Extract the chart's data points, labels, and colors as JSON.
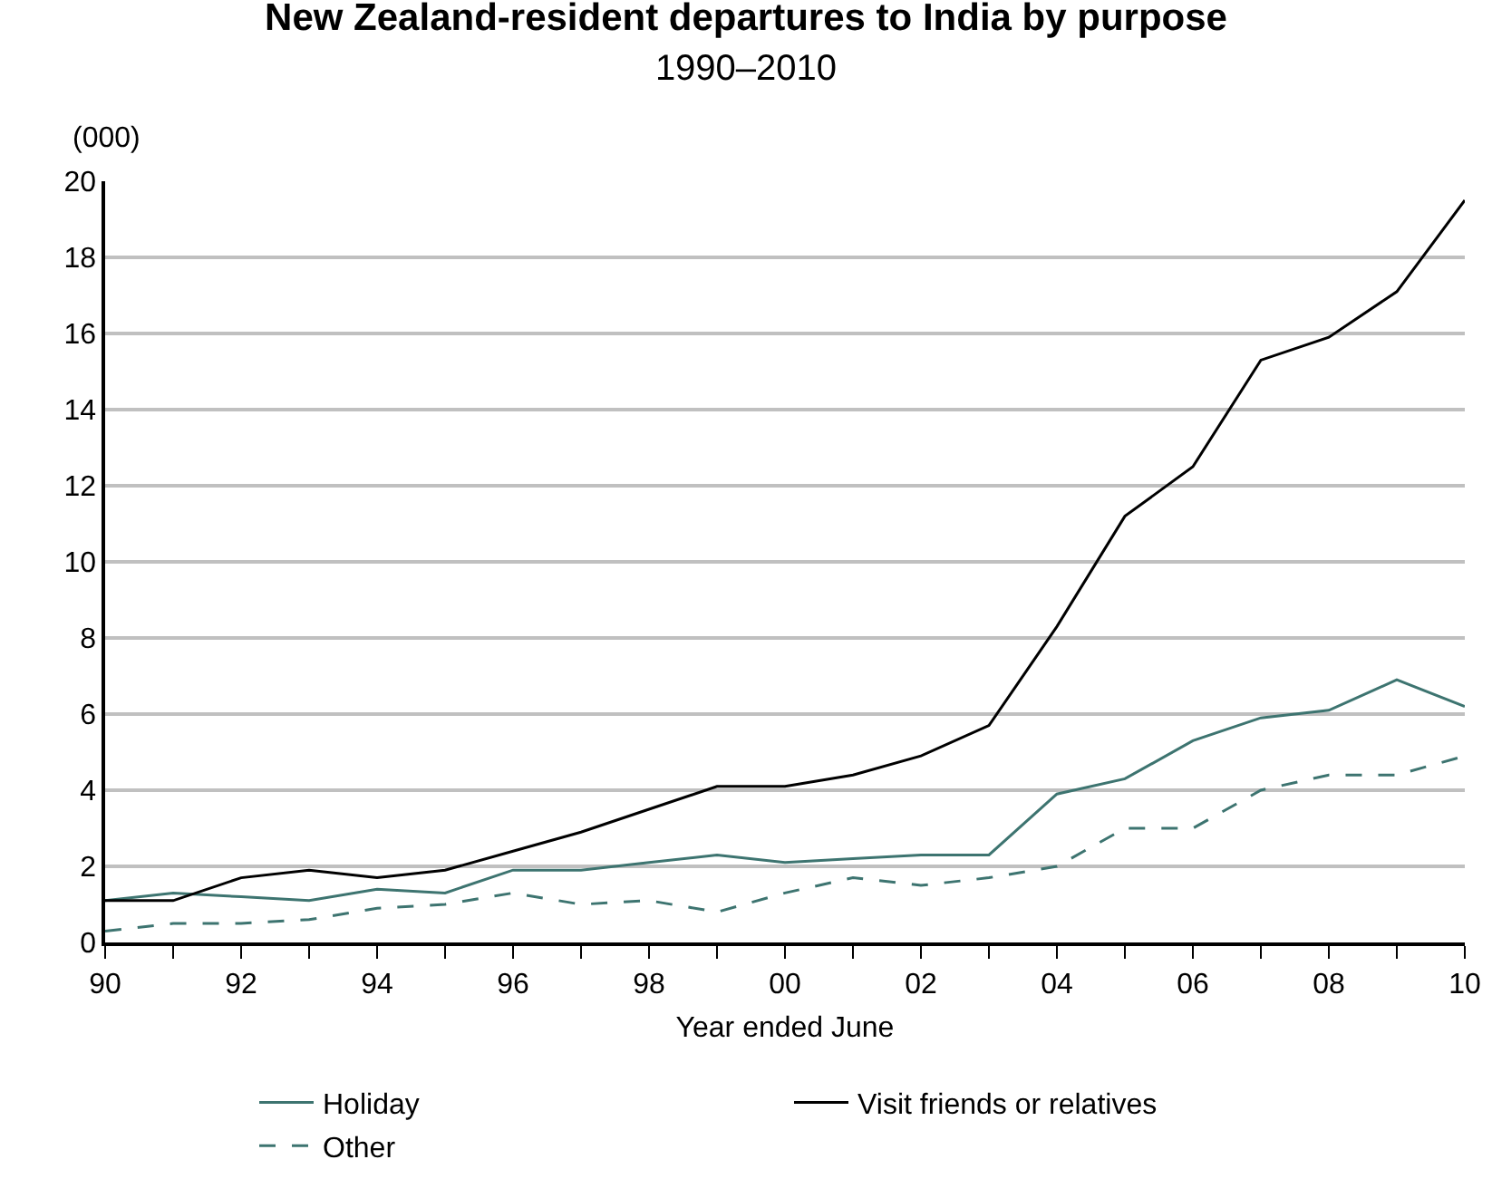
{
  "chart_data": {
    "type": "line",
    "title": "New Zealand-resident departures to India by purpose",
    "subtitle": "1990–2010",
    "xlabel": "Year ended June",
    "ylabel": "(000)",
    "x": [
      1990,
      1991,
      1992,
      1993,
      1994,
      1995,
      1996,
      1997,
      1998,
      1999,
      2000,
      2001,
      2002,
      2003,
      2004,
      2005,
      2006,
      2007,
      2008,
      2009,
      2010
    ],
    "series": [
      {
        "name": "Holiday",
        "color": "#3d7470",
        "line_style": "solid",
        "values": [
          1.1,
          1.3,
          1.2,
          1.1,
          1.4,
          1.3,
          1.9,
          1.9,
          2.1,
          2.3,
          2.1,
          2.2,
          2.3,
          2.3,
          3.9,
          4.3,
          5.3,
          5.9,
          6.1,
          6.9,
          6.2
        ]
      },
      {
        "name": "Visit friends or relatives",
        "color": "#000000",
        "line_style": "solid",
        "values": [
          1.1,
          1.1,
          1.7,
          1.9,
          1.7,
          1.9,
          2.4,
          2.9,
          3.5,
          4.1,
          4.1,
          4.4,
          4.9,
          5.7,
          8.3,
          11.2,
          12.5,
          15.3,
          15.9,
          17.1,
          19.5
        ]
      },
      {
        "name": "Other",
        "color": "#3d7470",
        "line_style": "dashed",
        "values": [
          0.3,
          0.5,
          0.5,
          0.6,
          0.9,
          1.0,
          1.3,
          1.0,
          1.1,
          0.8,
          1.3,
          1.7,
          1.5,
          1.7,
          2.0,
          3.0,
          3.0,
          4.0,
          4.4,
          4.4,
          4.9
        ]
      }
    ],
    "xlim": [
      1990,
      2010
    ],
    "xticks": [
      {
        "value": 1990,
        "label": "90"
      },
      {
        "value": 1991,
        "label": null
      },
      {
        "value": 1992,
        "label": "92"
      },
      {
        "value": 1993,
        "label": null
      },
      {
        "value": 1994,
        "label": "94"
      },
      {
        "value": 1995,
        "label": null
      },
      {
        "value": 1996,
        "label": "96"
      },
      {
        "value": 1997,
        "label": null
      },
      {
        "value": 1998,
        "label": "98"
      },
      {
        "value": 1999,
        "label": null
      },
      {
        "value": 2000,
        "label": "00"
      },
      {
        "value": 2001,
        "label": null
      },
      {
        "value": 2002,
        "label": "02"
      },
      {
        "value": 2003,
        "label": null
      },
      {
        "value": 2004,
        "label": "04"
      },
      {
        "value": 2005,
        "label": null
      },
      {
        "value": 2006,
        "label": "06"
      },
      {
        "value": 2007,
        "label": null
      },
      {
        "value": 2008,
        "label": "08"
      },
      {
        "value": 2009,
        "label": null
      },
      {
        "value": 2010,
        "label": "10"
      }
    ],
    "ylim": [
      0,
      20
    ],
    "yticks": [
      0,
      2,
      4,
      6,
      8,
      10,
      12,
      14,
      16,
      18,
      20
    ],
    "grid": "y",
    "legend": "bottom",
    "marker": "none"
  }
}
